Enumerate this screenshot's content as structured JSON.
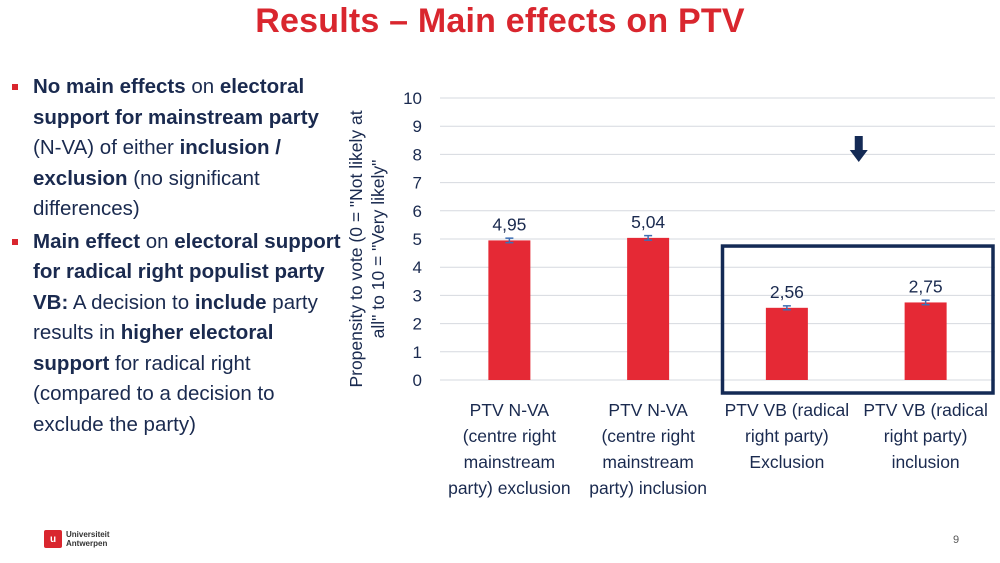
{
  "slide": {
    "title": "Results – Main effects on PTV",
    "page_number": "9",
    "logo": {
      "line1": "Universiteit",
      "line2": "Antwerpen"
    }
  },
  "bullets": [
    {
      "segments": [
        {
          "text": "No main effects",
          "bold": true
        },
        {
          "text": " on ",
          "bold": false
        },
        {
          "text": "electoral support for mainstream party",
          "bold": true
        },
        {
          "text": " (N-VA) of either ",
          "bold": false
        },
        {
          "text": "inclusion / exclusion",
          "bold": true
        },
        {
          "text": " (no significant differences)",
          "bold": false
        }
      ]
    },
    {
      "segments": [
        {
          "text": "Main effect",
          "bold": true
        },
        {
          "text": " on ",
          "bold": false
        },
        {
          "text": "electoral support for radical right populist party VB:",
          "bold": true
        },
        {
          "text": " A decision to ",
          "bold": false
        },
        {
          "text": "include",
          "bold": true
        },
        {
          "text": " party results in ",
          "bold": false
        },
        {
          "text": "higher electoral support",
          "bold": true
        },
        {
          "text": " for radical right (compared to a decision to exclude the party)",
          "bold": false
        }
      ]
    }
  ],
  "chart_data": {
    "type": "bar",
    "categories": [
      [
        "PTV N-VA",
        "(centre right",
        "mainstream",
        "party) exclusion"
      ],
      [
        "PTV N-VA",
        "(centre right",
        "mainstream",
        "party) inclusion"
      ],
      [
        "PTV VB (radical",
        "right party)",
        "Exclusion"
      ],
      [
        "PTV VB (radical",
        "right  party)",
        "inclusion"
      ]
    ],
    "values": [
      4.95,
      5.04,
      2.56,
      2.75
    ],
    "data_labels": [
      "4,95",
      "5,04",
      "2,56",
      "2,75"
    ],
    "error": [
      0.08,
      0.08,
      0.07,
      0.08
    ],
    "ylabel": [
      "Propensity to vote (0 = \"Not likely at",
      "all\" to 10 = \"Very likely\""
    ],
    "yticks": [
      0,
      1,
      2,
      3,
      4,
      5,
      6,
      7,
      8,
      9,
      10
    ],
    "ylim": [
      0,
      10
    ],
    "grid": true,
    "highlight": {
      "from_category": 2,
      "to_category": 3,
      "marker": "down-arrow"
    },
    "colors": {
      "bar": "#e52935",
      "error": "#3e6fb5",
      "text": "#1a2a4f",
      "grid": "#d6d9df",
      "box": "#142a55"
    }
  }
}
